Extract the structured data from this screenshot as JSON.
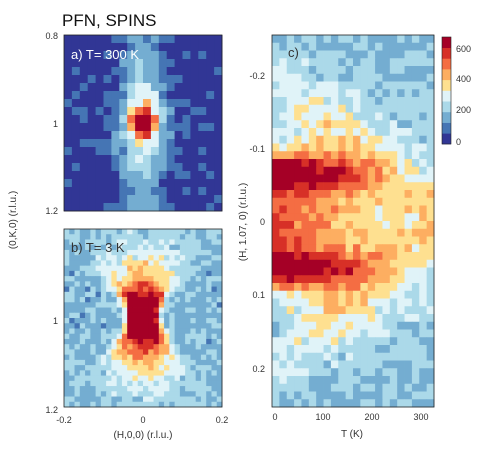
{
  "figure_title": "PFN, SPINS",
  "chart_data": [
    {
      "type": "heatmap",
      "panel_label": "a) T= 300 K",
      "x_ticks": [
        "-0.2",
        "0",
        "0.2"
      ],
      "x_range": [
        -0.2,
        0.2
      ],
      "y_ticks": [
        "0.8",
        "1",
        "1.2"
      ],
      "y_range": [
        0.8,
        1.2
      ],
      "ylabel": "(0,K,0) (r.l.u.)",
      "xlabel": "",
      "grid": false,
      "peak": {
        "x": 0.0,
        "y": 1.0,
        "value": 650
      }
    },
    {
      "type": "heatmap",
      "panel_label": "b) T= 3 K",
      "x_ticks": [
        "-0.2",
        "0",
        "0.2"
      ],
      "x_range": [
        -0.2,
        0.2
      ],
      "y_ticks": [
        "1",
        "1.2"
      ],
      "y_range": [
        0.8,
        1.2
      ],
      "ylabel": "(0,K,0) (r.l.u.)",
      "xlabel": "(H,0,0) (r.l.u.)",
      "grid": false,
      "peak": {
        "x": 0.0,
        "y": 1.0,
        "value": 650
      },
      "pattern": "butterfly"
    },
    {
      "type": "heatmap",
      "panel_label": "c)",
      "x_ticks": [
        "0",
        "100",
        "200",
        "300"
      ],
      "x_range": [
        0,
        330
      ],
      "y_ticks": [
        "-0.2",
        "-0.1",
        "0",
        "0.1",
        "0.2"
      ],
      "y_range": [
        -0.25,
        0.25
      ],
      "ylabel": "(H, 1.07, 0) (r.l.u.)",
      "xlabel": "T (K)",
      "grid": false,
      "peaks_h": [
        -0.065,
        0.065
      ],
      "colorbar": {
        "ticks": [
          "600",
          "400",
          "200",
          "0"
        ],
        "range": [
          0,
          700
        ],
        "colormap": [
          "#313695",
          "#4575b4",
          "#74add1",
          "#abd9e9",
          "#e0f3f8",
          "#fee090",
          "#fdae61",
          "#f46d43",
          "#d73027",
          "#a50026"
        ]
      }
    }
  ]
}
